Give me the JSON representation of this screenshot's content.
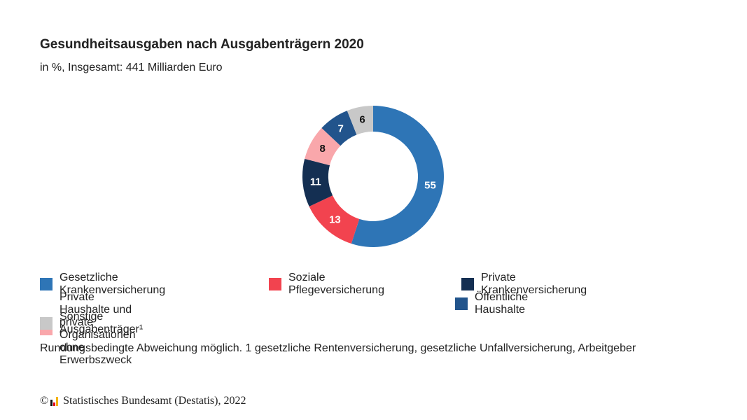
{
  "chart_data": {
    "type": "pie",
    "title": "Gesundheitsausgaben nach Ausgabenträgern 2020",
    "subtitle": "in %, Insgesamt: 441 Milliarden Euro",
    "donut": true,
    "series": [
      {
        "name": "Gesetzliche Krankenversicherung",
        "value": 55,
        "label": "55",
        "color": "#2e75b6",
        "label_color": "#ffffff"
      },
      {
        "name": "Soziale Pflegeversicherung",
        "value": 13,
        "label": "13",
        "color": "#f2434f",
        "label_color": "#ffffff"
      },
      {
        "name": "Private Krankenversicherung",
        "value": 11,
        "label": "11",
        "color": "#142f52",
        "label_color": "#ffffff"
      },
      {
        "name": "Private Haushalte und private Organisationen ohne Erwerbszweck",
        "value": 8,
        "label": "8",
        "color": "#f9a7ab",
        "label_color": "#111111"
      },
      {
        "name": "Öffentliche Haushalte",
        "value": 7,
        "label": "7",
        "color": "#22548c",
        "label_color": "#ffffff"
      },
      {
        "name": "Sonstige Ausgabenträger¹",
        "value": 6,
        "label": "6",
        "color": "#c8c8c8",
        "label_color": "#111111"
      }
    ],
    "legend": "bottom"
  },
  "footnote": "Rundungsbedingte Abweichung möglich. 1 gesetzliche Rentenversicherung, gesetzliche Unfallversicherung, Arbeitgeber",
  "source": {
    "copyright": "©",
    "text": "Statistisches Bundesamt (Destatis), 2022"
  }
}
